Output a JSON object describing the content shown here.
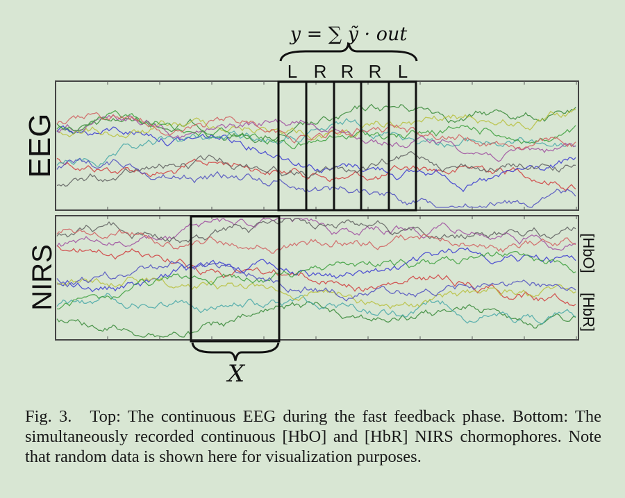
{
  "figure": {
    "formula": "y = ∑ ỹ · out",
    "window_labels": [
      "L",
      "R",
      "R",
      "R",
      "L"
    ],
    "eeg_label": "EEG",
    "nirs_label": "NIRS",
    "hbo_label": "[HbO]",
    "hbr_label": "[HbR]",
    "x_label": "X",
    "line_colors": [
      "#d04040",
      "#3a8a3a",
      "#3a3ad0",
      "#4aa8a8",
      "#b8c040",
      "#a050a0",
      "#606060",
      "#40a040",
      "#d06060",
      "#5050c0"
    ]
  },
  "caption": {
    "figno": "Fig. 3.",
    "text": "Top: The continuous EEG during the fast feedback phase. Bottom: The simultaneously recorded continuous [HbO] and [HbR] NIRS chormophores. Note that random data is shown here for visualization purposes."
  }
}
